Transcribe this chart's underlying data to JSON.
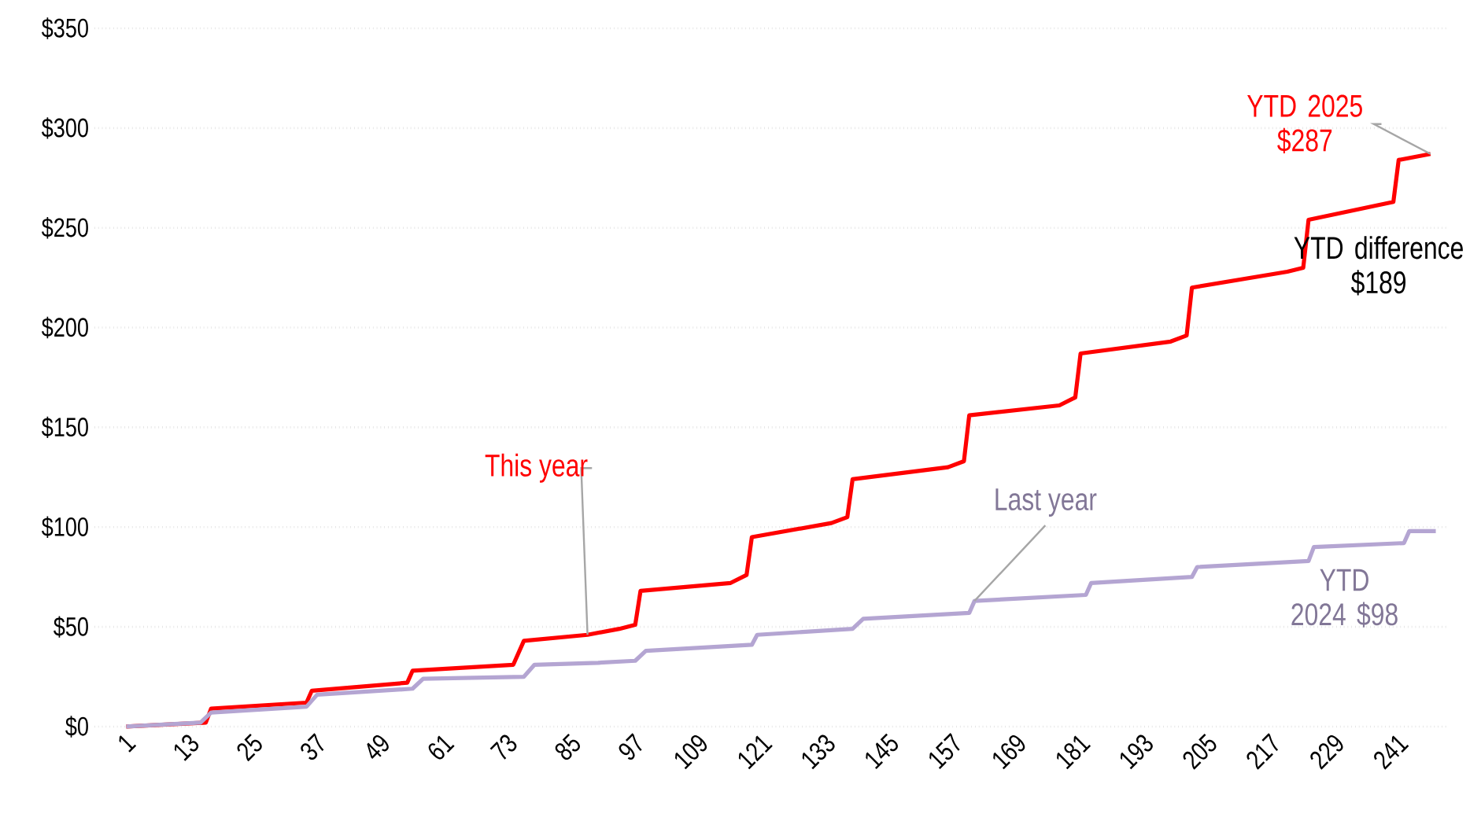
{
  "chart_data": {
    "type": "line",
    "series": [
      {
        "name": "This year",
        "color": "#ff0000",
        "x": [
          1,
          16,
          17,
          35,
          36,
          54,
          55,
          74,
          76,
          88,
          94,
          97,
          98,
          115,
          118,
          119,
          134,
          137,
          138,
          156,
          159,
          160,
          177,
          180,
          181,
          198,
          201,
          202,
          220,
          223,
          224,
          240,
          241,
          247
        ],
        "values": [
          0,
          2,
          9,
          12,
          18,
          22,
          28,
          31,
          43,
          46,
          49,
          51,
          68,
          72,
          76,
          95,
          102,
          105,
          124,
          130,
          133,
          156,
          161,
          165,
          187,
          193,
          196,
          220,
          228,
          230,
          254,
          263,
          284,
          287
        ]
      },
      {
        "name": "Last year",
        "color": "#b4a5d2",
        "x": [
          1,
          15,
          17,
          35,
          37,
          55,
          57,
          76,
          78,
          90,
          97,
          99,
          119,
          120,
          138,
          140,
          160,
          161,
          182,
          183,
          202,
          203,
          224,
          225,
          242,
          243,
          248
        ],
        "values": [
          0,
          2,
          7,
          10,
          16,
          19,
          24,
          25,
          31,
          32,
          33,
          38,
          41,
          46,
          49,
          54,
          57,
          63,
          66,
          72,
          75,
          80,
          83,
          90,
          92,
          98,
          98
        ]
      }
    ],
    "xlim": [
      -5,
      250
    ],
    "xticks": [
      1,
      13,
      25,
      37,
      49,
      61,
      73,
      85,
      97,
      109,
      121,
      133,
      145,
      157,
      169,
      181,
      193,
      205,
      217,
      229,
      241
    ],
    "ylim": [
      0,
      350
    ],
    "yticks": [
      {
        "value": 0,
        "label": "$0"
      },
      {
        "value": 50,
        "label": "$50"
      },
      {
        "value": 100,
        "label": "$100"
      },
      {
        "value": 150,
        "label": "$150"
      },
      {
        "value": 200,
        "label": "$200"
      },
      {
        "value": 250,
        "label": "$250"
      },
      {
        "value": 300,
        "label": "$300"
      },
      {
        "value": 350,
        "label": "$350"
      }
    ],
    "grid": "y",
    "marker": "none",
    "line_style": "solid",
    "annotations": [
      {
        "text": "YTD 2025 $287",
        "x": 247,
        "y": 287
      },
      "YTD difference $189",
      {
        "text": "YTD 2024 $98",
        "x": 248,
        "y": 98
      }
    ]
  }
}
